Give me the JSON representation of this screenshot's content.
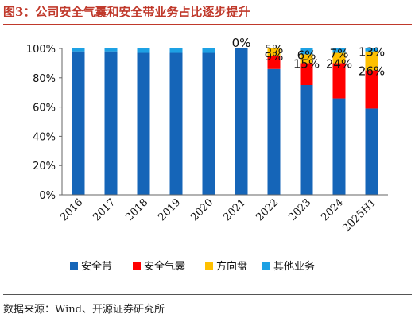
{
  "title": "图3：公司安全气囊和安全带业务占比逐步提升",
  "source": "数据来源：Wind、开源证券研究所",
  "colors": {
    "title": "#c0392b",
    "series": [
      "#1565b8",
      "#ff0000",
      "#ffc000",
      "#1da1e4"
    ]
  },
  "chart_data": {
    "type": "bar",
    "stacked": true,
    "title": "",
    "xlabel": "",
    "ylabel": "",
    "ylim": [
      0,
      100
    ],
    "yticks": [
      "0%",
      "20%",
      "40%",
      "60%",
      "80%",
      "100%"
    ],
    "categories": [
      "2016",
      "2017",
      "2018",
      "2019",
      "2020",
      "2021",
      "2022",
      "2023",
      "2024",
      "2025H1"
    ],
    "series": [
      {
        "name": "安全带",
        "values": [
          98,
          98,
          97,
          97,
          97,
          100,
          86,
          75,
          66,
          59
        ]
      },
      {
        "name": "安全气囊",
        "values": [
          0,
          0,
          0,
          0,
          0,
          0,
          9,
          15,
          24,
          26
        ]
      },
      {
        "name": "方向盘",
        "values": [
          0,
          0,
          0,
          0,
          0,
          0,
          5,
          6,
          7,
          13
        ]
      },
      {
        "name": "其他业务",
        "values": [
          2,
          2,
          3,
          3,
          3,
          0,
          0,
          4,
          3,
          2
        ]
      }
    ],
    "data_labels": [
      {
        "category": "2021",
        "series": "安全气囊",
        "text": "0%",
        "dy": -8
      },
      {
        "category": "2022",
        "series": "安全气囊",
        "text": "9%",
        "dy": 0
      },
      {
        "category": "2022",
        "series": "方向盘",
        "text": "5%",
        "dy": 0
      },
      {
        "category": "2023",
        "series": "安全气囊",
        "text": "15%",
        "dy": 0
      },
      {
        "category": "2023",
        "series": "方向盘",
        "text": "6%",
        "dy": 0
      },
      {
        "category": "2024",
        "series": "安全气囊",
        "text": "24%",
        "dy": 0
      },
      {
        "category": "2024",
        "series": "方向盘",
        "text": "7%",
        "dy": 0
      },
      {
        "category": "2025H1",
        "series": "安全气囊",
        "text": "26%",
        "dy": 0
      },
      {
        "category": "2025H1",
        "series": "方向盘",
        "text": "13%",
        "dy": 0
      }
    ],
    "legend": {
      "position": "bottom"
    },
    "grid": false
  }
}
